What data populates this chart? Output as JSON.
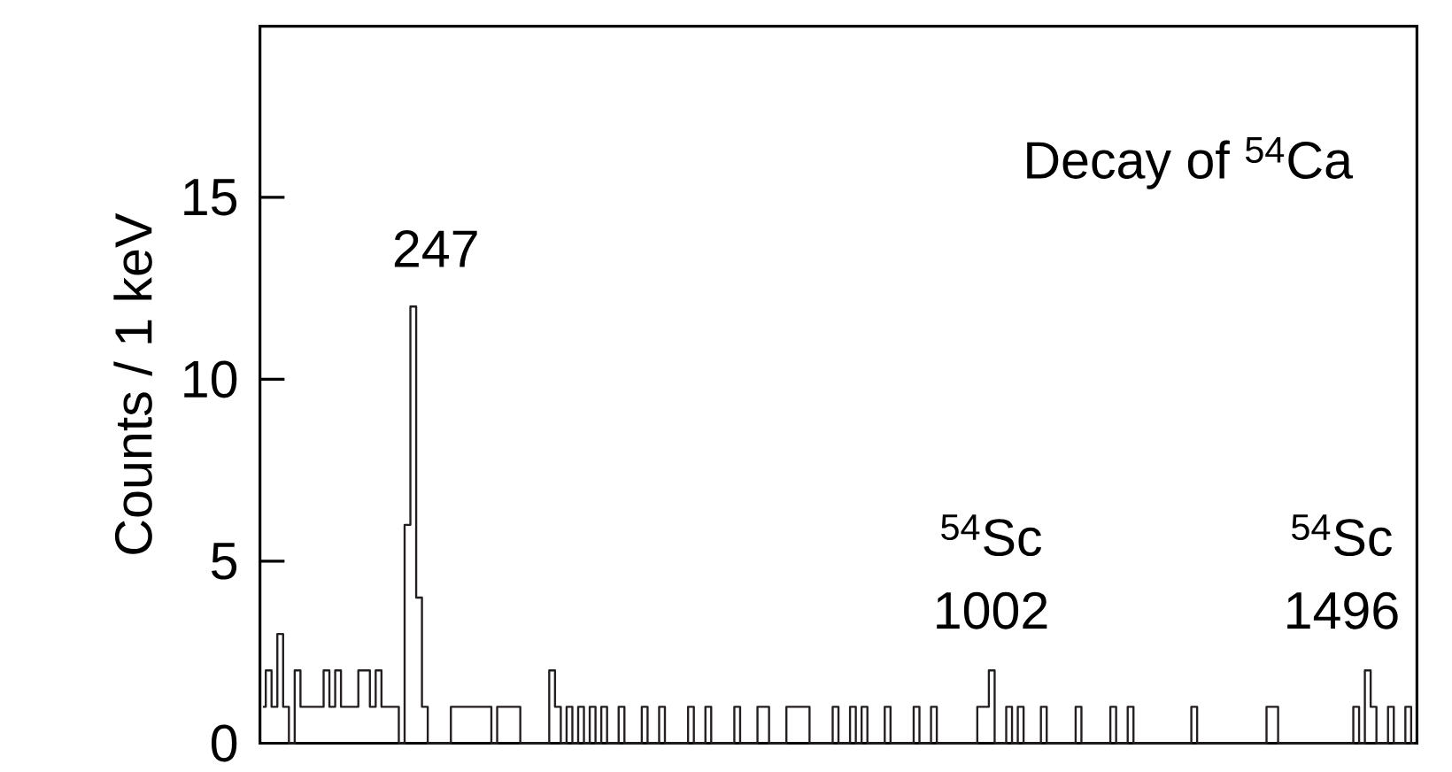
{
  "chart_data": {
    "type": "step",
    "title": "Decay of $^{54}$Ca",
    "ylabel": "Counts / 1 keV",
    "color": "#231f20",
    "categories": [
      null,
      null,
      null,
      null,
      null,
      null,
      null,
      null,
      null,
      null,
      null,
      null,
      null,
      null,
      null,
      null,
      null,
      null,
      null,
      null,
      null,
      null,
      null,
      null,
      null,
      null,
      null,
      null,
      null,
      null,
      null,
      null,
      null,
      null,
      null,
      null,
      null,
      null,
      null,
      null,
      null,
      null,
      null,
      null,
      null,
      null,
      null,
      null,
      null,
      null,
      null,
      null,
      null,
      null,
      null,
      null,
      null,
      null,
      null,
      null,
      null,
      null,
      null,
      null,
      null,
      null,
      null,
      null,
      null,
      null,
      null,
      null,
      null,
      null,
      null,
      null,
      null,
      null,
      null,
      null,
      null,
      null,
      null,
      null,
      null,
      null,
      null,
      null,
      null,
      null,
      null,
      null,
      null,
      null,
      null,
      null,
      null,
      null,
      null,
      null,
      null,
      null,
      null,
      null,
      null,
      null,
      null,
      null,
      null,
      null,
      null,
      null,
      null,
      null,
      null,
      null,
      null,
      null,
      null,
      null,
      null,
      null,
      null,
      null,
      null,
      null,
      null,
      null,
      null,
      null,
      null,
      null,
      null,
      null,
      null,
      null,
      null,
      null,
      null,
      null,
      null,
      null,
      null,
      null,
      null,
      null,
      null,
      null,
      null,
      null,
      null,
      null,
      null,
      null,
      null,
      null,
      null,
      null,
      null,
      null,
      null,
      null,
      null,
      null,
      null,
      null,
      null,
      null,
      null,
      null,
      null,
      null,
      null,
      null,
      null,
      null,
      null,
      null,
      null,
      null,
      null,
      null,
      null,
      null,
      null,
      null,
      null,
      null,
      null,
      null,
      null,
      null,
      null,
      null,
      null,
      null,
      null,
      null,
      null,
      null
    ],
    "values": [
      1,
      2,
      1,
      3,
      1,
      0,
      2,
      1,
      1,
      1,
      1,
      2,
      1,
      2,
      1,
      1,
      1,
      2,
      2,
      1,
      2,
      1,
      1,
      1,
      0,
      6,
      12,
      4,
      1,
      0,
      0,
      0,
      0,
      1,
      1,
      1,
      1,
      1,
      1,
      1,
      0,
      1,
      1,
      1,
      1,
      0,
      0,
      0,
      0,
      0,
      2,
      1,
      0,
      1,
      0,
      1,
      0,
      1,
      0,
      1,
      0,
      0,
      1,
      0,
      0,
      0,
      1,
      0,
      0,
      1,
      0,
      0,
      0,
      0,
      1,
      0,
      0,
      1,
      0,
      0,
      0,
      0,
      1,
      0,
      0,
      0,
      1,
      1,
      0,
      0,
      0,
      1,
      1,
      1,
      1,
      0,
      0,
      0,
      0,
      1,
      0,
      0,
      1,
      0,
      1,
      0,
      0,
      0,
      1,
      0,
      0,
      0,
      0,
      1,
      0,
      0,
      1,
      0,
      0,
      0,
      0,
      0,
      0,
      0,
      1,
      1,
      2,
      0,
      0,
      1,
      0,
      1,
      0,
      0,
      0,
      1,
      0,
      0,
      0,
      0,
      0,
      1,
      0,
      0,
      0,
      0,
      0,
      1,
      0,
      0,
      1,
      0,
      0,
      0,
      0,
      0,
      0,
      0,
      0,
      0,
      0,
      1,
      0,
      0,
      0,
      0,
      0,
      0,
      0,
      0,
      0,
      0,
      0,
      0,
      1,
      1,
      0,
      0,
      0,
      0,
      0,
      0,
      0,
      0,
      0,
      0,
      0,
      0,
      0,
      1,
      0,
      2,
      1,
      0,
      0,
      1,
      0,
      0,
      1,
      0
    ],
    "ylim": [
      0,
      19.7
    ],
    "yticks": [
      0,
      5,
      10,
      15
    ],
    "tick_labels": "y",
    "annotations": [
      "247",
      "$^{54}$Sc",
      "1002",
      "$^{54}$Sc",
      "1496"
    ]
  }
}
